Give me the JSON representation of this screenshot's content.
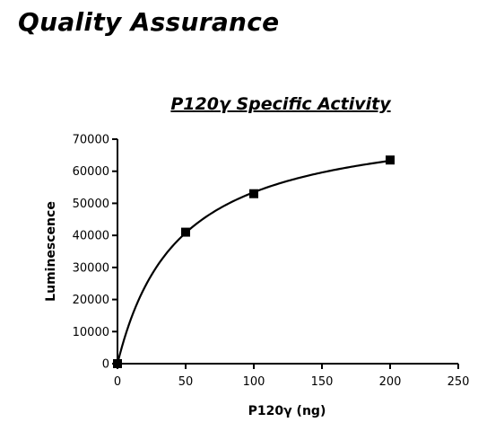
{
  "page": {
    "heading": "Quality Assurance"
  },
  "chart_data": {
    "type": "scatter",
    "title": "P120γ Specific Activity",
    "xlabel": "P120γ (ng)",
    "ylabel": "Luminescence",
    "xlim": [
      0,
      250
    ],
    "ylim": [
      0,
      70000
    ],
    "x_ticks": [
      0,
      50,
      100,
      150,
      200,
      250
    ],
    "y_ticks": [
      0,
      10000,
      20000,
      30000,
      40000,
      50000,
      60000,
      70000
    ],
    "grid": false,
    "legend": "none",
    "fit_curve": "hyperbolic",
    "series": [
      {
        "x": [
          0,
          50,
          100,
          200
        ],
        "y": [
          0,
          41000,
          53000,
          63500
        ]
      }
    ],
    "colors": {
      "marker": "#000000",
      "line": "#000000"
    }
  }
}
